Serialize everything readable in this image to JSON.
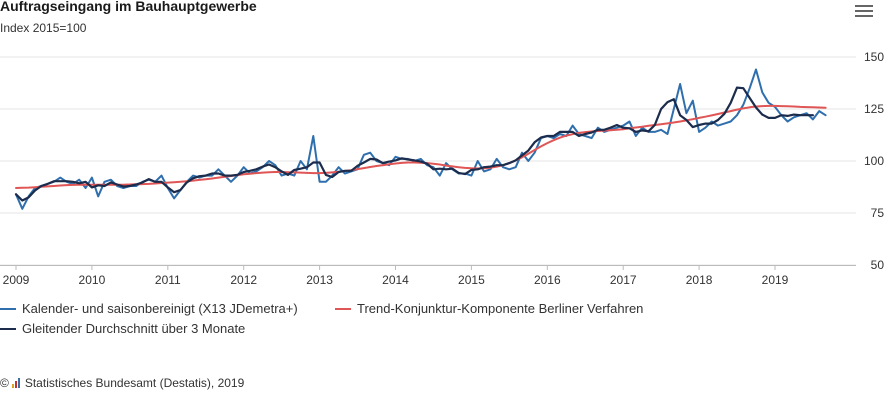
{
  "header": {
    "title": "Auftragseingang im Bauhauptgewerbe",
    "subtitle": "Index 2015=100",
    "menu_icon": "hamburger-menu-icon"
  },
  "footer": {
    "copyright_symbol": "©",
    "source": "Statistisches Bundesamt (Destatis), 2019",
    "logo_icon": "destatis-logo-icon"
  },
  "colors": {
    "series1": "#2f6fad",
    "series2": "#e05555",
    "series3": "#1c2c4c",
    "grid": "#e6e6e6",
    "axis_text": "#333333"
  },
  "chart_data": {
    "type": "line",
    "title": "Auftragseingang im Bauhauptgewerbe",
    "subtitle": "Index 2015=100",
    "xlabel": "",
    "ylabel": "",
    "x_ticks": [
      "2009",
      "2010",
      "2011",
      "2012",
      "2013",
      "2014",
      "2015",
      "2016",
      "2017",
      "2018",
      "2019"
    ],
    "y_ticks": [
      50,
      75,
      100,
      125,
      150
    ],
    "xlim": [
      2009.0,
      2019.83
    ],
    "ylim": [
      50,
      150
    ],
    "y_axis_position": "right",
    "grid": true,
    "legend_position": "bottom",
    "series": [
      {
        "name": "Kalender- und saisonbereinigt (X13 JDemetra+)",
        "start": 2009.0,
        "step": 0.08333,
        "values": [
          84,
          77,
          83,
          87,
          88,
          89,
          90,
          92,
          90,
          89,
          91,
          87,
          92,
          83,
          90,
          91,
          88,
          87,
          88,
          88,
          90,
          91,
          90,
          93,
          87,
          82,
          86,
          90,
          93,
          92,
          93,
          93,
          96,
          93,
          90,
          93,
          97,
          94,
          95,
          97,
          100,
          98,
          93,
          94,
          93,
          100,
          96,
          112,
          90,
          90,
          93,
          97,
          94,
          95,
          96,
          103,
          104,
          100,
          99,
          98,
          102,
          101,
          101,
          100,
          101,
          98,
          97,
          93,
          99,
          96,
          94,
          94,
          93,
          100,
          95,
          96,
          101,
          97,
          96,
          97,
          104,
          100,
          104,
          111,
          112,
          111,
          113,
          112,
          117,
          113,
          112,
          111,
          116,
          114,
          115,
          116,
          117,
          119,
          112,
          116,
          114,
          114,
          115,
          113,
          125,
          137,
          123,
          129,
          114,
          116,
          119,
          117,
          118,
          119,
          122,
          127,
          135,
          144,
          133,
          128,
          126,
          122,
          119,
          121,
          122,
          123,
          120,
          124,
          122
        ]
      },
      {
        "name": "Trend-Konjunktur-Komponente Berliner Verfahren",
        "start": 2009.0,
        "step": 0.08333,
        "values": [
          87.0,
          87.1,
          87.2,
          87.4,
          87.6,
          87.8,
          88.0,
          88.2,
          88.4,
          88.5,
          88.6,
          88.6,
          88.6,
          88.6,
          88.6,
          88.6,
          88.6,
          88.6,
          88.7,
          88.8,
          88.9,
          89.0,
          89.2,
          89.4,
          89.6,
          89.8,
          90.0,
          90.3,
          90.6,
          90.9,
          91.2,
          91.6,
          92.0,
          92.4,
          92.8,
          93.2,
          93.6,
          93.9,
          94.2,
          94.4,
          94.6,
          94.7,
          94.7,
          94.6,
          94.5,
          94.4,
          94.3,
          94.2,
          94.2,
          94.3,
          94.5,
          94.8,
          95.2,
          95.6,
          96.1,
          96.6,
          97.1,
          97.6,
          98.0,
          98.4,
          98.8,
          99.1,
          99.3,
          99.3,
          99.2,
          99.0,
          98.7,
          98.3,
          97.8,
          97.4,
          97.0,
          96.7,
          96.5,
          96.4,
          96.5,
          96.8,
          97.3,
          98.0,
          99.0,
          100.3,
          101.8,
          103.5,
          105.3,
          107.0,
          108.6,
          110.0,
          111.2,
          112.2,
          112.9,
          113.5,
          113.9,
          114.2,
          114.4,
          114.6,
          114.8,
          115.0,
          115.3,
          115.7,
          116.1,
          116.5,
          116.9,
          117.3,
          117.7,
          118.1,
          118.5,
          119.0,
          119.5,
          120.1,
          120.7,
          121.3,
          121.9,
          122.6,
          123.3,
          124.0,
          124.7,
          125.3,
          125.8,
          126.2,
          126.4,
          126.5,
          126.5,
          126.4,
          126.3,
          126.2,
          126.0,
          125.9,
          125.8,
          125.7,
          125.6
        ]
      },
      {
        "name": "Gleitender Durchschnitt über 3 Monate",
        "start": 2009.0,
        "step": 0.08333,
        "values": [
          84,
          81,
          82.5,
          85.8,
          88.0,
          89.0,
          90.3,
          90.3,
          90.3,
          90.0,
          89.3,
          90.0,
          87.3,
          88.3,
          88.0,
          89.7,
          88.7,
          87.7,
          88.0,
          88.7,
          89.7,
          91.3,
          90.0,
          90.0,
          87.3,
          85.0,
          86.0,
          89.7,
          91.7,
          92.7,
          93.0,
          94.0,
          94.0,
          93.0,
          93.0,
          93.3,
          94.7,
          95.3,
          96.0,
          97.3,
          98.3,
          97.0,
          95.0,
          93.3,
          95.7,
          96.3,
          97.0,
          99.3,
          99.3,
          93.3,
          92.3,
          94.7,
          95.3,
          95.3,
          97.7,
          99.3,
          101.0,
          100.7,
          99.0,
          99.7,
          100.3,
          101.3,
          100.7,
          100.3,
          99.7,
          98.7,
          96.0,
          96.3,
          96.0,
          96.3,
          94.3,
          93.7,
          95.7,
          96.0,
          97.0,
          97.3,
          98.0,
          98.0,
          99.0,
          100.3,
          102.7,
          105.0,
          109.0,
          111.3,
          112.0,
          112.0,
          114.0,
          114.0,
          114.0,
          112.0,
          113.0,
          113.7,
          115.0,
          115.0,
          116.0,
          117.3,
          116.0,
          115.7,
          114.0,
          114.7,
          114.3,
          117.3,
          125.0,
          128.3,
          129.7,
          122.0,
          119.7,
          116.3,
          117.3,
          118.0,
          118.0,
          119.7,
          122.7,
          128.0,
          135.3,
          135.0,
          130.3,
          125.7,
          122.3,
          120.7,
          120.7,
          122.0,
          121.7,
          122.3,
          122.0,
          122.0,
          122.0
        ]
      }
    ]
  }
}
